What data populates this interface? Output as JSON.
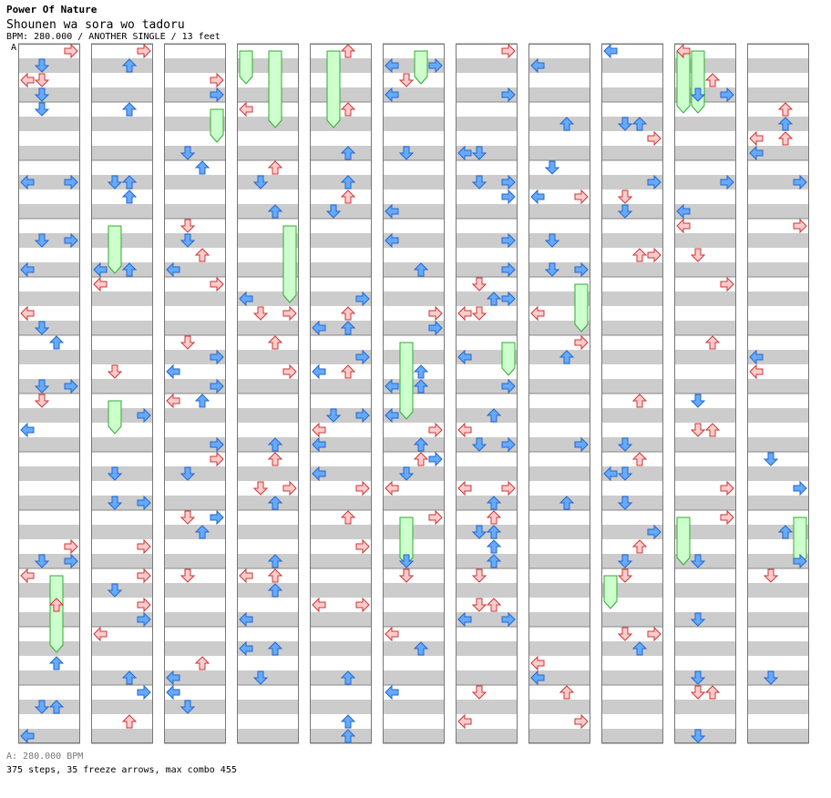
{
  "header": {
    "title": "Power Of Nature",
    "subtitle": "Shounen wa sora wo tadoru",
    "info": "BPM: 280.000 / ANOTHER SINGLE / 13 feet",
    "marker": "A"
  },
  "footer": {
    "bpm_text": "A: 280.000 BPM",
    "stats": "375 steps, 35 freeze arrows, max combo 455"
  },
  "colors": {
    "band": "#cccccc",
    "panel_border": "#777777",
    "left_arrow_red": "#ffcccc",
    "red_stroke": "#cc3333",
    "blue_arrow": "#66aaff",
    "blue_stroke": "#2266cc",
    "green_arrow": "#44dd44",
    "freeze_fill": "#ccffcc",
    "freeze_stroke": "#33aa33"
  },
  "chart_data": {
    "type": "step-chart",
    "columns": 11,
    "lanes": [
      "left",
      "down",
      "up",
      "right"
    ],
    "measures_per_column": 12,
    "steps": 375,
    "freeze_arrows": 35,
    "max_combo": 455,
    "bpm": 280,
    "difficulty": "ANOTHER SINGLE",
    "feet": 13
  }
}
